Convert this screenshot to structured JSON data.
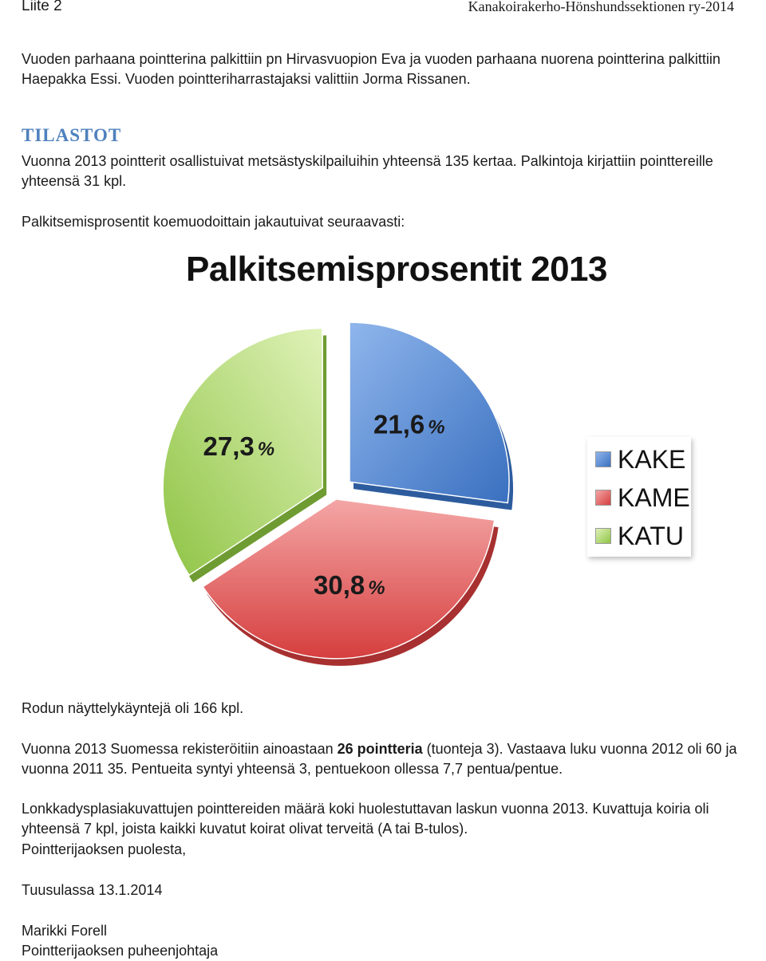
{
  "header": {
    "left": "Liite 2",
    "right": "Kanakoirakerho-Hönshundssektionen ry-2014"
  },
  "intro": {
    "text": "Vuoden parhaana pointterina palkittiin pn Hirvasvuopion Eva ja vuoden parhaana nuorena pointterina palkittiin Haepakka Essi. Vuoden pointteriharrastajaksi valittiin Jorma Rissanen."
  },
  "stats": {
    "heading": "TILASTOT",
    "line1": "Vuonna 2013 pointterit osallistuivat metsästyskilpailuihin yhteensä 135 kertaa. Palkintoja kirjattiin pointtereille yhteensä 31 kpl.",
    "line2": "Palkitsemisprosentit koemuodoittain jakautuivat seuraavasti:"
  },
  "chart_data": {
    "type": "pie",
    "title": "Palkitsemisprosentit 2013",
    "categories": [
      "KAKE",
      "KAME",
      "KATU"
    ],
    "values": [
      21.6,
      30.8,
      27.3
    ],
    "labels": [
      "21,6",
      "30,8",
      "27,3"
    ],
    "unit": "%",
    "colors": [
      "#4f87d3",
      "#e35b5b",
      "#a5d65a"
    ],
    "legend_position": "right"
  },
  "after_chart": {
    "shows": "Rodun näyttelykäyntejä oli 166 kpl.",
    "reg_pre": "Vuonna 2013 Suomessa rekisteröitiin ainoastaan ",
    "reg_bold": "26 pointteria",
    "reg_post": " (tuonteja 3). Vastaava luku vuonna 2012 oli 60 ja vuonna 2011 35. Pentueita syntyi yhteensä 3, pentuekoon ollessa 7,7 pentua/pentue.",
    "hips": "Lonkkadysplasiakuvattujen pointtereiden määrä koki huolestuttavan laskun vuonna 2013. Kuvattuja koiria oli yhteensä 7 kpl, joista kaikki kuvatut koirat olivat terveitä (A tai B-tulos).",
    "closing": "Pointterijaoksen puolesta,",
    "place_date": "Tuusulassa 13.1.2014",
    "signer_name": "Marikki Forell",
    "signer_title": "Pointterijaoksen puheenjohtaja"
  }
}
